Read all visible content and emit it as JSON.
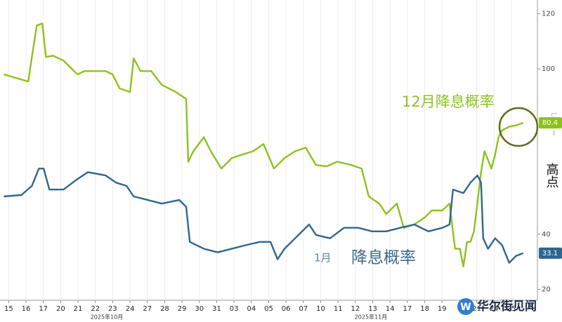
{
  "chart_data": {
    "type": "line",
    "xlim": [
      -0.5,
      30.5
    ],
    "ylim": [
      16,
      125
    ],
    "xticks": [
      {
        "value": 0,
        "label": "15"
      },
      {
        "value": 1,
        "label": "16"
      },
      {
        "value": 2,
        "label": "17"
      },
      {
        "value": 3,
        "label": "20"
      },
      {
        "value": 4,
        "label": "21"
      },
      {
        "value": 5,
        "label": "22"
      },
      {
        "value": 6,
        "label": "23"
      },
      {
        "value": 7,
        "label": "24"
      },
      {
        "value": 8,
        "label": "27"
      },
      {
        "value": 9,
        "label": "28"
      },
      {
        "value": 10,
        "label": "29"
      },
      {
        "value": 11,
        "label": "30"
      },
      {
        "value": 12,
        "label": "31"
      },
      {
        "value": 13,
        "label": "03"
      },
      {
        "value": 14,
        "label": "04"
      },
      {
        "value": 15,
        "label": "05"
      },
      {
        "value": 16,
        "label": "06"
      },
      {
        "value": 17,
        "label": "07"
      },
      {
        "value": 18,
        "label": "10"
      },
      {
        "value": 19,
        "label": "11"
      },
      {
        "value": 20,
        "label": "12"
      },
      {
        "value": 21,
        "label": "13"
      },
      {
        "value": 22,
        "label": "14"
      },
      {
        "value": 23,
        "label": "17"
      },
      {
        "value": 24,
        "label": "18"
      },
      {
        "value": 25,
        "label": "19"
      },
      {
        "value": 27,
        "label": "21"
      },
      {
        "value": 28,
        "label": "24"
      },
      {
        "value": 29,
        "label": "25"
      }
    ],
    "yticks": [
      20,
      40,
      100,
      120
    ],
    "period_labels": [
      "2025年10月",
      "2025年11月"
    ],
    "grid": true,
    "series": [
      {
        "name": "12月降息概率",
        "color": "#8cc21e",
        "last_value": 80.4,
        "x": [
          -0.28,
          1.13,
          1.34,
          1.62,
          1.94,
          2.15,
          2.55,
          3.16,
          3.97,
          4.37,
          5.59,
          5.99,
          6.4,
          7.0,
          7.21,
          7.61,
          8.22,
          8.83,
          9.64,
          10.24,
          10.36,
          10.65,
          11.26,
          11.66,
          12.27,
          12.87,
          13.48,
          14.09,
          14.7,
          15.3,
          15.91,
          16.52,
          17.13,
          17.73,
          18.34,
          18.95,
          19.76,
          20.36,
          20.77,
          21.38,
          21.78,
          22.39,
          22.79,
          23.4,
          24.01,
          24.41,
          25.02,
          25.43,
          25.75,
          26.03,
          26.23,
          26.44,
          26.64,
          26.84,
          27.25,
          27.45,
          27.85,
          28.06,
          28.26,
          28.46,
          28.87,
          29.27,
          29.68
        ],
        "values": [
          98.0,
          95.4,
          104.3,
          115.7,
          116.5,
          104.3,
          104.8,
          103.0,
          98.0,
          99.2,
          99.2,
          98.0,
          92.9,
          91.6,
          103.8,
          99.2,
          99.2,
          94.2,
          91.6,
          89.1,
          66.3,
          70.1,
          75.2,
          70.1,
          63.8,
          67.6,
          68.9,
          70.1,
          72.7,
          63.8,
          67.6,
          70.1,
          71.4,
          65.1,
          64.6,
          66.3,
          65.1,
          63.8,
          53.7,
          51.1,
          47.3,
          51.1,
          42.3,
          43.5,
          46.1,
          48.6,
          48.6,
          51.1,
          34.7,
          34.7,
          28.3,
          37.2,
          37.2,
          41.0,
          62.5,
          70.1,
          63.8,
          68.9,
          75.2,
          77.7,
          79.0,
          79.5,
          80.4
        ]
      },
      {
        "name": "1月",
        "color": "#2f6690",
        "last_value": 33.1,
        "x": [
          -0.28,
          0.73,
          1.34,
          1.74,
          2.02,
          2.35,
          3.16,
          3.97,
          4.57,
          5.59,
          6.19,
          6.8,
          7.21,
          8.02,
          8.83,
          9.84,
          10.24,
          10.45,
          11.26,
          12.06,
          12.87,
          13.68,
          14.49,
          15.1,
          15.51,
          15.91,
          16.52,
          17.33,
          17.73,
          18.54,
          19.35,
          20.16,
          20.97,
          21.78,
          22.59,
          23.4,
          24.21,
          25.02,
          25.43,
          25.63,
          26.23,
          26.64,
          27.04,
          27.25,
          27.37,
          27.65,
          28.06,
          28.46,
          28.87,
          29.27,
          29.68
        ],
        "values": [
          53.7,
          54.2,
          57.5,
          63.8,
          63.8,
          56.2,
          56.2,
          60.0,
          62.5,
          61.3,
          58.7,
          57.5,
          53.7,
          52.4,
          51.1,
          52.4,
          49.9,
          37.2,
          34.7,
          33.4,
          34.7,
          36.0,
          37.2,
          37.2,
          30.9,
          34.7,
          38.5,
          43.5,
          39.7,
          38.5,
          42.3,
          42.3,
          41.0,
          41.0,
          42.3,
          43.5,
          41.0,
          42.3,
          43.5,
          56.2,
          54.9,
          58.7,
          61.3,
          58.7,
          38.5,
          34.7,
          38.5,
          36.0,
          29.6,
          32.1,
          33.1
        ]
      }
    ],
    "annotations": [
      "降息概率",
      "高点",
      "Low ="
    ],
    "watermark": "华尔街见闻"
  }
}
